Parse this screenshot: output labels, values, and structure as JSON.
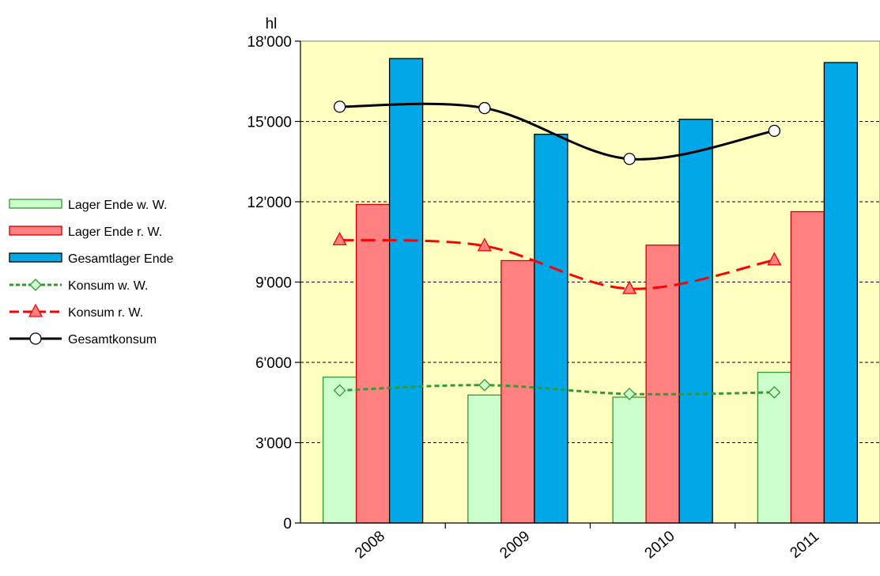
{
  "chart_data": {
    "type": "bar",
    "categories": [
      "2008",
      "2009",
      "2010",
      "2011"
    ],
    "ylabel": "hl",
    "ylim": [
      0,
      18000
    ],
    "yticks": [
      "0",
      "3'000",
      "6'000",
      "9'000",
      "12'000",
      "15'000",
      "18'000"
    ],
    "ytick_values": [
      0,
      3000,
      6000,
      9000,
      12000,
      15000,
      18000
    ],
    "grid": true,
    "legend_position": "left",
    "plot_background": "#ffffc0",
    "bar_series": [
      {
        "name": "Lager Ende w. W.",
        "values": [
          5450,
          4780,
          4700,
          5630
        ],
        "color": "#ccffcc",
        "stroke": "#339933"
      },
      {
        "name": "Lager Ende r. W.",
        "values": [
          11900,
          9800,
          10380,
          11630
        ],
        "color": "#ff8080",
        "stroke": "#cc0000"
      },
      {
        "name": "Gesamtlager Ende",
        "values": [
          17350,
          14520,
          15080,
          17200
        ],
        "color": "#00a8e8",
        "stroke": "#000000"
      }
    ],
    "line_series": [
      {
        "name": "Konsum w. W.",
        "values": [
          4950,
          5150,
          4820,
          4880
        ],
        "color": "#339933",
        "marker": "diamond",
        "marker_fill": "#ccffcc",
        "dash": "dotted"
      },
      {
        "name": "Konsum r. W.",
        "values": [
          10570,
          10350,
          8750,
          9820
        ],
        "color": "#ff0000",
        "marker": "triangle",
        "marker_fill": "#ff8080",
        "dash": "dashed"
      },
      {
        "name": "Gesamtkonsum",
        "values": [
          15550,
          15500,
          13600,
          14650
        ],
        "color": "#000000",
        "marker": "circle",
        "marker_fill": "#ffffff",
        "dash": "solid"
      }
    ]
  }
}
